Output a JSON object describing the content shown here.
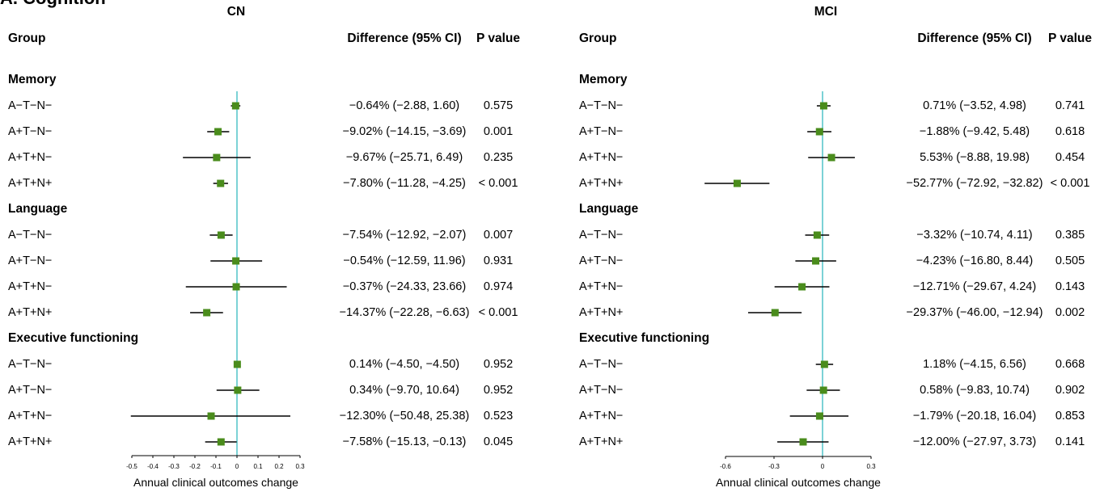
{
  "figure_title": "A. Cognition",
  "colors": {
    "marker": "#4a8c1c",
    "ci_line": "#000000",
    "reference_line": "#5cc6cc",
    "axis": "#000000"
  },
  "chart_data": [
    {
      "type": "scatter",
      "title": "CN",
      "columns": {
        "group": "Group",
        "difference": "Difference (95% CI)",
        "p_value": "P value"
      },
      "xlabel": "Annual clinical outcomes change",
      "xlim": [
        -0.5,
        0.3
      ],
      "xticks": [
        -0.5,
        -0.4,
        -0.3,
        -0.2,
        -0.1,
        0,
        0.1,
        0.2,
        0.3
      ],
      "xtick_labels": [
        "-0.5",
        "-0.4",
        "-0.3",
        "-0.2",
        "-0.1",
        "0",
        "0.1",
        "0.2",
        "0.3"
      ],
      "reference_line_x": 0,
      "marker": "square",
      "groups": [
        {
          "name": "Memory",
          "rows": [
            {
              "label": "A−T−N−",
              "estimate": -0.0064,
              "ci": [
                -0.0288,
                0.016
              ],
              "difference": "−0.64% (−2.88, 1.60)",
              "p_value": "0.575"
            },
            {
              "label": "A+T−N−",
              "estimate": -0.0902,
              "ci": [
                -0.1415,
                -0.0369
              ],
              "difference": "−9.02% (−14.15, −3.69)",
              "p_value": "0.001"
            },
            {
              "label": "A+T+N−",
              "estimate": -0.0967,
              "ci": [
                -0.2571,
                0.0649
              ],
              "difference": "−9.67% (−25.71, 6.49)",
              "p_value": "0.235"
            },
            {
              "label": "A+T+N+",
              "estimate": -0.078,
              "ci": [
                -0.1128,
                -0.0425
              ],
              "difference": "−7.80% (−11.28, −4.25)",
              "p_value": "< 0.001"
            }
          ]
        },
        {
          "name": "Language",
          "rows": [
            {
              "label": "A−T−N−",
              "estimate": -0.0754,
              "ci": [
                -0.1292,
                -0.0207
              ],
              "difference": "−7.54% (−12.92, −2.07)",
              "p_value": "0.007"
            },
            {
              "label": "A+T−N−",
              "estimate": -0.0054,
              "ci": [
                -0.1259,
                0.1196
              ],
              "difference": "−0.54% (−12.59, 11.96)",
              "p_value": "0.931"
            },
            {
              "label": "A+T+N−",
              "estimate": -0.0037,
              "ci": [
                -0.2433,
                0.2366
              ],
              "difference": "−0.37% (−24.33, 23.66)",
              "p_value": "0.974"
            },
            {
              "label": "A+T+N+",
              "estimate": -0.1437,
              "ci": [
                -0.2228,
                -0.0663
              ],
              "difference": "−14.37% (−22.28, −6.63)",
              "p_value": "< 0.001"
            }
          ]
        },
        {
          "name": "Executive functioning",
          "rows": [
            {
              "label": "A−T−N−",
              "estimate": 0.0014,
              "ci": [
                -0.045,
                -0.045
              ],
              "difference": "0.14% (−4.50, −4.50)",
              "p_value": "0.952"
            },
            {
              "label": "A+T−N−",
              "estimate": 0.0034,
              "ci": [
                -0.097,
                0.1064
              ],
              "difference": "0.34% (−9.70, 10.64)",
              "p_value": "0.952"
            },
            {
              "label": "A+T+N−",
              "estimate": -0.123,
              "ci": [
                -0.5048,
                0.2538
              ],
              "difference": "−12.30% (−50.48, 25.38)",
              "p_value": "0.523"
            },
            {
              "label": "A+T+N+",
              "estimate": -0.0758,
              "ci": [
                -0.1513,
                -0.0013
              ],
              "difference": "−7.58% (−15.13, −0.13)",
              "p_value": "0.045"
            }
          ]
        }
      ]
    },
    {
      "type": "scatter",
      "title": "MCI",
      "columns": {
        "group": "Group",
        "difference": "Difference (95% CI)",
        "p_value": "P value"
      },
      "xlabel": "Annual clinical outcomes change",
      "xlim": [
        -0.6,
        0.3
      ],
      "xticks": [
        -0.6,
        -0.3,
        0,
        0.3
      ],
      "xtick_labels": [
        "-0.6",
        "-0.3",
        "0",
        "0.3"
      ],
      "reference_line_x": 0,
      "marker": "square",
      "groups": [
        {
          "name": "Memory",
          "rows": [
            {
              "label": "A−T−N−",
              "estimate": 0.0071,
              "ci": [
                -0.0352,
                0.0498
              ],
              "difference": "0.71% (−3.52, 4.98)",
              "p_value": "0.741"
            },
            {
              "label": "A+T−N−",
              "estimate": -0.0188,
              "ci": [
                -0.0942,
                0.0548
              ],
              "difference": "−1.88% (−9.42, 5.48)",
              "p_value": "0.618"
            },
            {
              "label": "A+T+N−",
              "estimate": 0.0553,
              "ci": [
                -0.0888,
                0.1998
              ],
              "difference": "5.53% (−8.88, 19.98)",
              "p_value": "0.454"
            },
            {
              "label": "A+T+N+",
              "estimate": -0.5277,
              "ci": [
                -0.7292,
                -0.3282
              ],
              "difference": "−52.77% (−72.92, −32.82)",
              "p_value": "< 0.001"
            }
          ]
        },
        {
          "name": "Language",
          "rows": [
            {
              "label": "A−T−N−",
              "estimate": -0.0332,
              "ci": [
                -0.1074,
                0.0411
              ],
              "difference": "−3.32% (−10.74, 4.11)",
              "p_value": "0.385"
            },
            {
              "label": "A+T−N−",
              "estimate": -0.0423,
              "ci": [
                -0.168,
                0.0844
              ],
              "difference": "−4.23% (−16.80, 8.44)",
              "p_value": "0.505"
            },
            {
              "label": "A+T+N−",
              "estimate": -0.1271,
              "ci": [
                -0.2967,
                0.0424
              ],
              "difference": "−12.71% (−29.67, 4.24)",
              "p_value": "0.143"
            },
            {
              "label": "A+T+N+",
              "estimate": -0.2937,
              "ci": [
                -0.46,
                -0.1294
              ],
              "difference": "−29.37% (−46.00, −12.94)",
              "p_value": "0.002"
            }
          ]
        },
        {
          "name": "Executive functioning",
          "rows": [
            {
              "label": "A−T−N−",
              "estimate": 0.0118,
              "ci": [
                -0.0415,
                0.0656
              ],
              "difference": "1.18% (−4.15, 6.56)",
              "p_value": "0.668"
            },
            {
              "label": "A+T−N−",
              "estimate": 0.0058,
              "ci": [
                -0.0983,
                0.1074
              ],
              "difference": "0.58% (−9.83, 10.74)",
              "p_value": "0.902"
            },
            {
              "label": "A+T+N−",
              "estimate": -0.0179,
              "ci": [
                -0.2018,
                0.1604
              ],
              "difference": "−1.79% (−20.18, 16.04)",
              "p_value": "0.853"
            },
            {
              "label": "A+T+N+",
              "estimate": -0.12,
              "ci": [
                -0.2797,
                0.0373
              ],
              "difference": "−12.00% (−27.97, 3.73)",
              "p_value": "0.141"
            }
          ]
        }
      ]
    }
  ]
}
